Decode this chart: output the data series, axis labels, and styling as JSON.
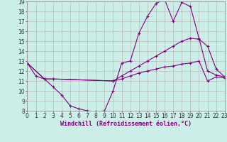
{
  "xlabel": "Windchill (Refroidissement éolien,°C)",
  "bg_color": "#cceee8",
  "line_color": "#800080",
  "grid_color": "#b0b0b0",
  "xmin": 0,
  "xmax": 23,
  "ymin": 8,
  "ymax": 19,
  "series1_x": [
    0,
    1,
    2,
    3,
    4,
    5,
    6,
    7,
    8,
    9,
    10,
    11,
    12,
    13,
    14,
    15,
    16,
    17,
    18,
    19,
    20,
    21,
    22,
    23
  ],
  "series1_y": [
    12.8,
    11.5,
    11.2,
    10.4,
    9.6,
    8.5,
    8.2,
    8.0,
    7.9,
    8.0,
    10.0,
    12.8,
    13.0,
    15.8,
    17.5,
    18.8,
    19.2,
    17.0,
    18.9,
    18.5,
    15.3,
    12.0,
    11.6,
    11.4
  ],
  "series2_x": [
    0,
    2,
    3,
    10,
    11,
    12,
    13,
    14,
    15,
    16,
    17,
    18,
    19,
    20,
    21,
    22,
    23
  ],
  "series2_y": [
    12.8,
    11.2,
    11.2,
    11.0,
    11.5,
    12.0,
    12.5,
    13.0,
    13.5,
    14.0,
    14.5,
    15.0,
    15.3,
    15.2,
    14.5,
    12.2,
    11.4
  ],
  "series3_x": [
    0,
    2,
    3,
    10,
    11,
    12,
    13,
    14,
    15,
    16,
    17,
    18,
    19,
    20,
    21,
    22,
    23
  ],
  "series3_y": [
    12.8,
    11.2,
    11.2,
    11.0,
    11.2,
    11.5,
    11.8,
    12.0,
    12.2,
    12.4,
    12.5,
    12.7,
    12.8,
    13.0,
    11.0,
    11.4,
    11.3
  ],
  "tick_fontsize": 5.5,
  "label_fontsize": 6.0
}
